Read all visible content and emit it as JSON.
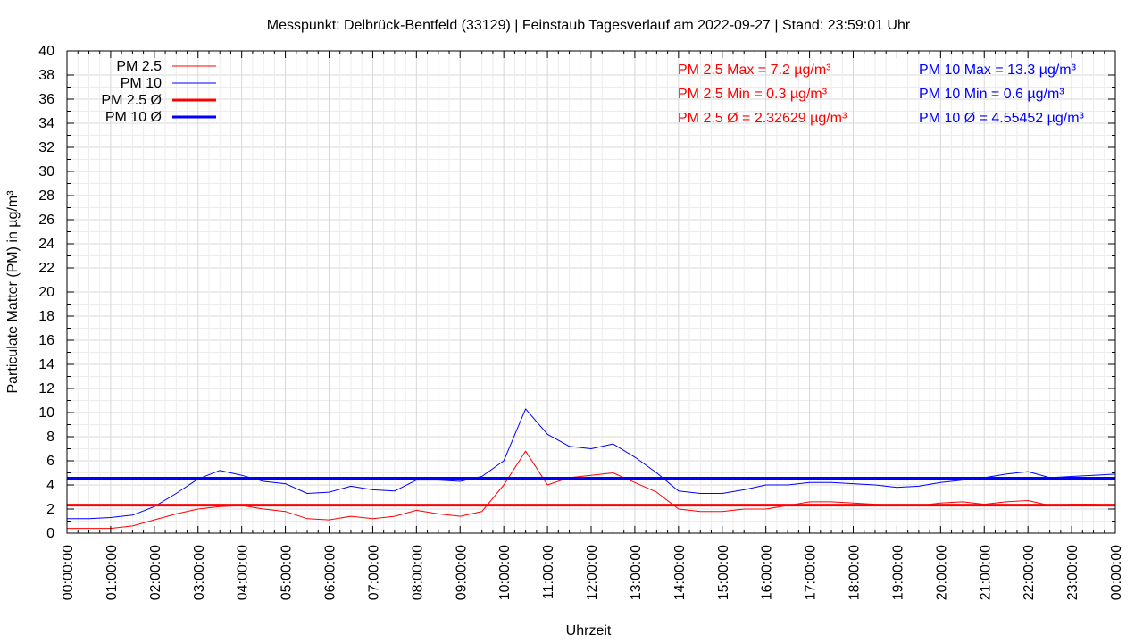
{
  "chart_data": {
    "type": "line",
    "title": "Messpunkt: Delbrück-Bentfeld (33129) | Feinstaub Tagesverlauf am 2022-09-27 | Stand: 23:59:01 Uhr",
    "xlabel": "Uhrzeit",
    "ylabel": "Particulate Matter (PM) in µg/m³",
    "ylim": [
      0,
      40
    ],
    "yticks": [
      0,
      2,
      4,
      6,
      8,
      10,
      12,
      14,
      16,
      18,
      20,
      22,
      24,
      26,
      28,
      30,
      32,
      34,
      36,
      38,
      40
    ],
    "xlim": [
      0,
      24
    ],
    "xtick_labels": [
      "00:00:00",
      "01:00:00",
      "02:00:00",
      "03:00:00",
      "04:00:00",
      "05:00:00",
      "06:00:00",
      "07:00:00",
      "08:00:00",
      "09:00:00",
      "10:00:00",
      "11:00:00",
      "12:00:00",
      "13:00:00",
      "14:00:00",
      "15:00:00",
      "16:00:00",
      "17:00:00",
      "18:00:00",
      "19:00:00",
      "20:00:00",
      "21:00:00",
      "22:00:00",
      "23:00:00",
      "00:00:00"
    ],
    "grid": true,
    "legend_position": "top-left",
    "x_hours": [
      0,
      0.5,
      1,
      1.5,
      2,
      2.5,
      3,
      3.5,
      4,
      4.5,
      5,
      5.5,
      6,
      6.5,
      7,
      7.5,
      8,
      8.5,
      9,
      9.5,
      10,
      10.5,
      11,
      11.5,
      12,
      12.5,
      13,
      13.5,
      14,
      14.5,
      15,
      15.5,
      16,
      16.5,
      17,
      17.5,
      18,
      18.5,
      19,
      19.5,
      20,
      20.5,
      21,
      21.5,
      22,
      22.5,
      23,
      23.5,
      24
    ],
    "series": [
      {
        "name": "PM 2.5",
        "color": "#ff0000",
        "values": [
          0.4,
          0.4,
          0.4,
          0.6,
          1.1,
          1.6,
          2.0,
          2.2,
          2.3,
          2.0,
          1.8,
          1.2,
          1.1,
          1.4,
          1.2,
          1.4,
          1.9,
          1.6,
          1.4,
          1.8,
          4.0,
          6.8,
          4.0,
          4.6,
          4.8,
          5.0,
          4.2,
          3.4,
          2.0,
          1.8,
          1.8,
          2.0,
          2.0,
          2.3,
          2.6,
          2.6,
          2.5,
          2.4,
          2.3,
          2.3,
          2.5,
          2.6,
          2.4,
          2.6,
          2.7,
          2.3,
          2.4,
          2.4,
          2.3
        ]
      },
      {
        "name": "PM 10",
        "color": "#0000ff",
        "values": [
          1.2,
          1.2,
          1.3,
          1.5,
          2.2,
          3.3,
          4.5,
          5.2,
          4.8,
          4.3,
          4.1,
          3.3,
          3.4,
          3.9,
          3.6,
          3.5,
          4.4,
          4.4,
          4.3,
          4.7,
          6.0,
          10.3,
          8.2,
          7.2,
          7.0,
          7.4,
          6.3,
          5.0,
          3.5,
          3.3,
          3.3,
          3.6,
          4.0,
          4.0,
          4.2,
          4.2,
          4.1,
          4.0,
          3.8,
          3.9,
          4.2,
          4.4,
          4.6,
          4.9,
          5.1,
          4.6,
          4.7,
          4.8,
          4.9
        ]
      },
      {
        "name": "PM 2.5 Ø",
        "color": "#ff0000",
        "constant": 2.32629
      },
      {
        "name": "PM 10 Ø",
        "color": "#0000ff",
        "constant": 4.55452
      }
    ],
    "annotations": {
      "pm25_max": "PM 2.5 Max = 7.2 µg/m³",
      "pm25_min": "PM 2.5 Min = 0.3 µg/m³",
      "pm25_avg": "PM 2.5 Ø = 2.32629 µg/m³",
      "pm10_max": "PM 10 Max = 13.3 µg/m³",
      "pm10_min": "PM 10 Min = 0.6 µg/m³",
      "pm10_avg": "PM 10 Ø = 4.55452 µg/m³"
    }
  }
}
